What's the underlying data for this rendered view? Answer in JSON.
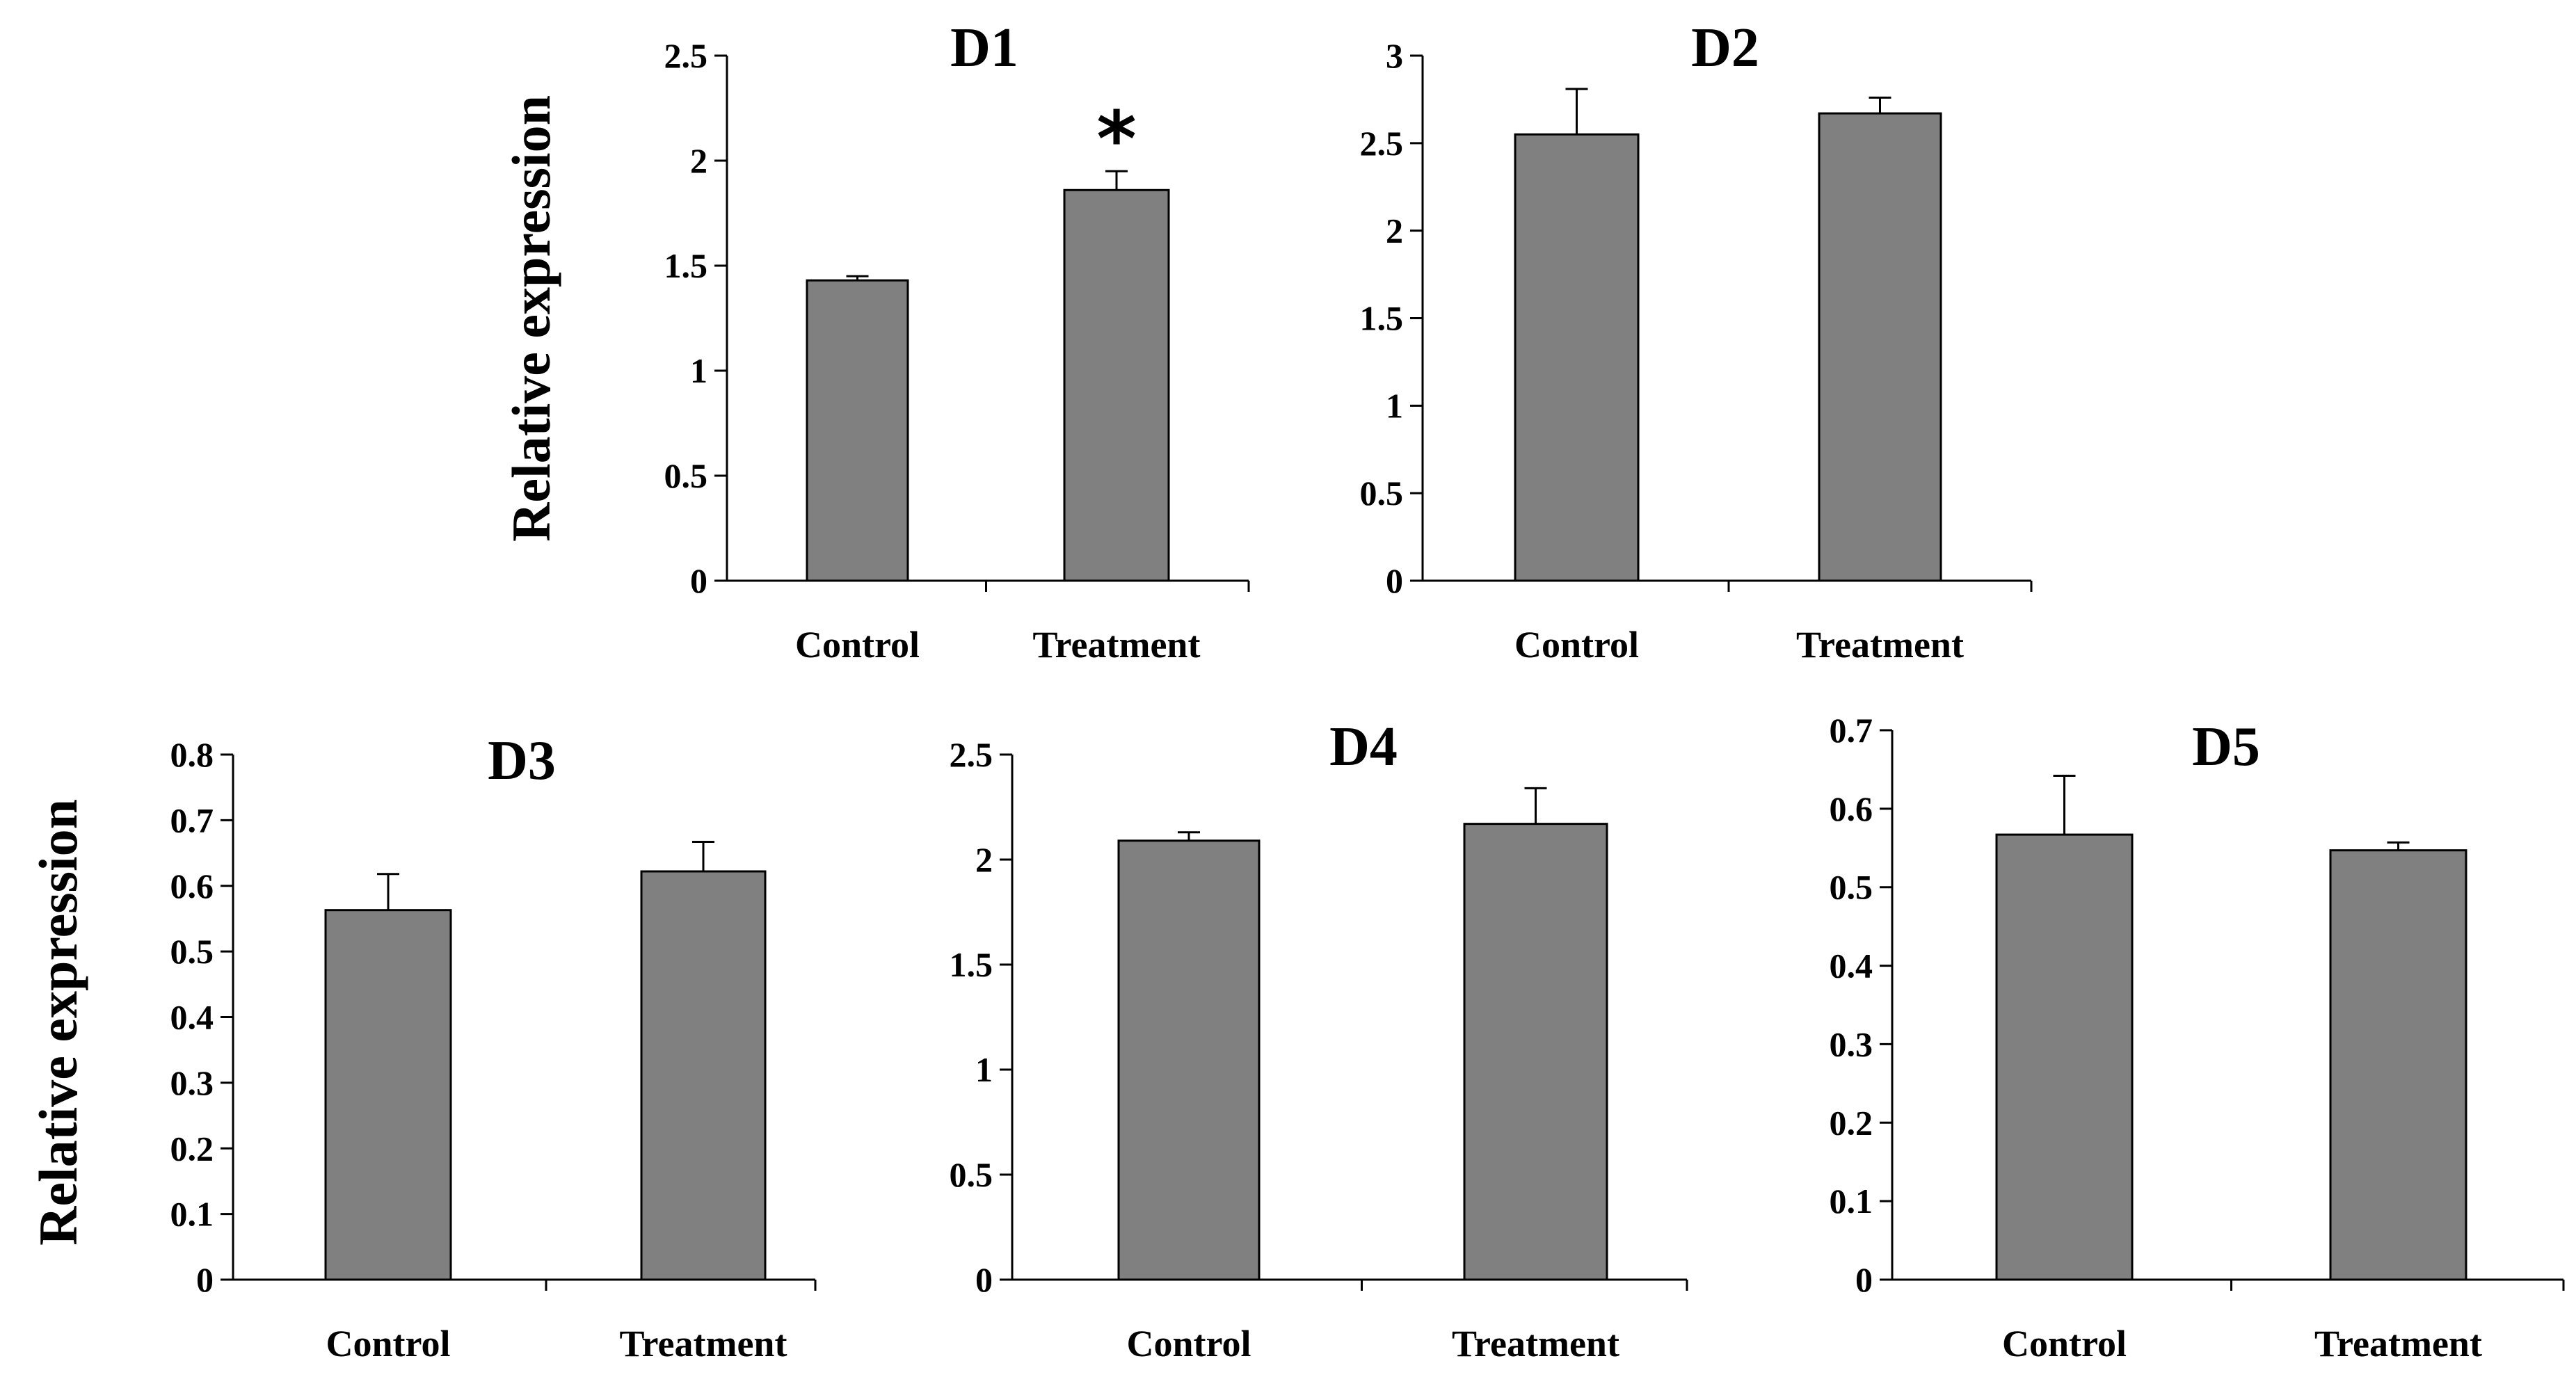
{
  "figure": {
    "ylabel": "Relative expression",
    "bar_color": "#808080",
    "axis_color": "#000000"
  },
  "chart_data": [
    {
      "type": "bar",
      "title": "D1",
      "categories": [
        "Control",
        "Treatment"
      ],
      "values": [
        1.43,
        1.86
      ],
      "errors": [
        0.02,
        0.09
      ],
      "ylim": [
        0,
        2.5
      ],
      "yticks": [
        "0",
        "0.5",
        "1",
        "1.5",
        "2",
        "2.5"
      ],
      "xlabel": "",
      "ylabel": "Relative expression",
      "annotations": [
        {
          "category": "Treatment",
          "text": "*"
        }
      ]
    },
    {
      "type": "bar",
      "title": "D2",
      "categories": [
        "Control",
        "Treatment"
      ],
      "values": [
        2.55,
        2.67
      ],
      "errors": [
        0.26,
        0.09
      ],
      "ylim": [
        0,
        3
      ],
      "yticks": [
        "0",
        "0.5",
        "1",
        "1.5",
        "2",
        "2.5",
        "3"
      ],
      "xlabel": "",
      "ylabel": "",
      "annotations": []
    },
    {
      "type": "bar",
      "title": "D3",
      "categories": [
        "Control",
        "Treatment"
      ],
      "values": [
        0.563,
        0.622
      ],
      "errors": [
        0.055,
        0.045
      ],
      "ylim": [
        0,
        0.8
      ],
      "yticks": [
        "0",
        "0.1",
        "0.2",
        "0.3",
        "0.4",
        "0.5",
        "0.6",
        "0.7",
        "0.8"
      ],
      "xlabel": "",
      "ylabel": "Relative expression",
      "annotations": []
    },
    {
      "type": "bar",
      "title": "D4",
      "categories": [
        "Control",
        "Treatment"
      ],
      "values": [
        2.09,
        2.17
      ],
      "errors": [
        0.04,
        0.17
      ],
      "ylim": [
        0,
        2.5
      ],
      "yticks": [
        "0",
        "0.5",
        "1",
        "1.5",
        "2",
        "2.5"
      ],
      "xlabel": "",
      "ylabel": "",
      "annotations": []
    },
    {
      "type": "bar",
      "title": "D5",
      "categories": [
        "Control",
        "Treatment"
      ],
      "values": [
        0.567,
        0.547
      ],
      "errors": [
        0.075,
        0.01
      ],
      "ylim": [
        0,
        0.7
      ],
      "yticks": [
        "0",
        "0.1",
        "0.2",
        "0.3",
        "0.4",
        "0.5",
        "0.6",
        "0.7"
      ],
      "xlabel": "",
      "ylabel": "",
      "annotations": []
    }
  ]
}
